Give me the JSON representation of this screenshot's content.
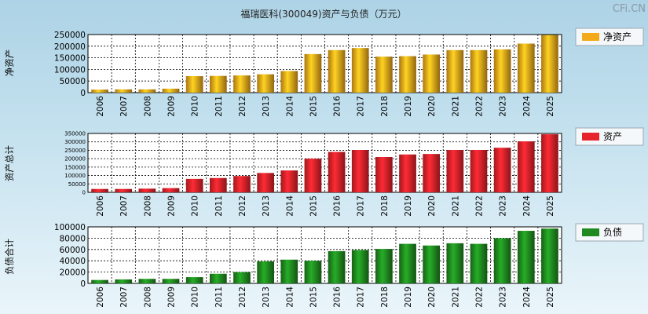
{
  "page": {
    "title": "福瑞医科(300049)资产与负债（万元）",
    "watermark": "CFi.CN"
  },
  "chart_data": [
    {
      "type": "bar",
      "id": "net-assets",
      "ylabel": "净资产",
      "legend": "净资产",
      "color": "#f4a91a",
      "ylim": [
        0,
        250000
      ],
      "yticks": [
        "0",
        "50000",
        "100000",
        "150000",
        "200000",
        "250000"
      ],
      "categories": [
        "2006",
        "2007",
        "2008",
        "2009",
        "2010",
        "2011",
        "2012",
        "2013",
        "2014",
        "2015",
        "2016",
        "2017",
        "2018",
        "2019",
        "2020",
        "2021",
        "2022",
        "2023",
        "2024",
        "2025"
      ],
      "values": [
        13000,
        14000,
        14000,
        17000,
        71000,
        72000,
        74000,
        79000,
        93000,
        166000,
        183000,
        192000,
        155000,
        157000,
        164000,
        183000,
        183000,
        186000,
        211000,
        248000
      ]
    },
    {
      "type": "bar",
      "id": "total-assets",
      "ylabel": "资产总计",
      "legend": "资产",
      "color": "#e8222a",
      "ylim": [
        0,
        350000
      ],
      "yticks": [
        "0",
        "50000",
        "100000",
        "150000",
        "200000",
        "250000",
        "300000",
        "350000"
      ],
      "categories": [
        "2006",
        "2007",
        "2008",
        "2009",
        "2010",
        "2011",
        "2012",
        "2013",
        "2014",
        "2015",
        "2016",
        "2017",
        "2018",
        "2019",
        "2020",
        "2021",
        "2022",
        "2023",
        "2024",
        "2025"
      ],
      "values": [
        20000,
        20000,
        22000,
        25000,
        80000,
        85000,
        97000,
        115000,
        130000,
        200000,
        240000,
        252000,
        210000,
        225000,
        228000,
        252000,
        252000,
        265000,
        303000,
        345000
      ]
    },
    {
      "type": "bar",
      "id": "total-liabilities",
      "ylabel": "负债合计",
      "legend": "负债",
      "color": "#1f8a1f",
      "ylim": [
        0,
        100000
      ],
      "yticks": [
        "0",
        "20000",
        "40000",
        "60000",
        "80000",
        "100000"
      ],
      "categories": [
        "2006",
        "2007",
        "2008",
        "2009",
        "2010",
        "2011",
        "2012",
        "2013",
        "2014",
        "2015",
        "2016",
        "2017",
        "2018",
        "2019",
        "2020",
        "2021",
        "2022",
        "2023",
        "2024",
        "2025"
      ],
      "values": [
        6000,
        7000,
        8000,
        8000,
        11000,
        17000,
        20000,
        39000,
        42000,
        40000,
        57000,
        59000,
        61000,
        70000,
        67000,
        71000,
        70000,
        80000,
        93000,
        97000
      ]
    }
  ]
}
